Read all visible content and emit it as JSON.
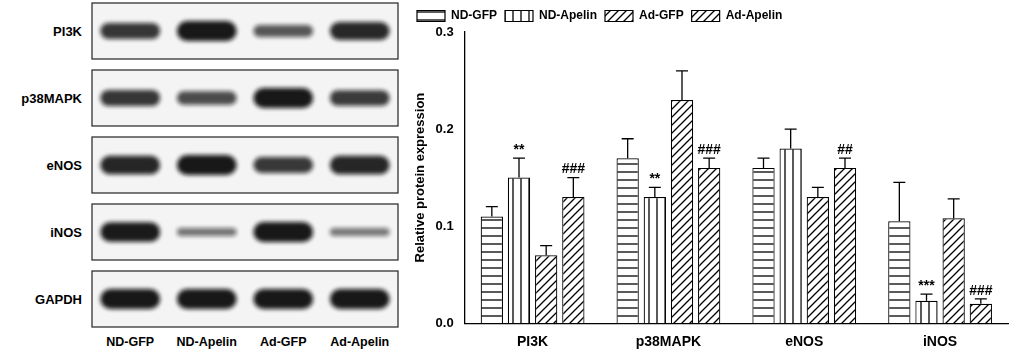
{
  "chart_data": {
    "type": "bar",
    "categories": [
      "PI3K",
      "p38MAPK",
      "eNOS",
      "iNOS"
    ],
    "series": [
      {
        "name": "ND-GFP",
        "color": "#000000",
        "values": [
          0.11,
          0.17,
          0.16,
          0.105
        ],
        "errors": [
          0.01,
          0.02,
          0.01,
          0.04
        ],
        "annotations": [
          null,
          null,
          null,
          null
        ]
      },
      {
        "name": "ND-Apelin",
        "color": "#000000",
        "values": [
          0.15,
          0.13,
          0.18,
          0.023
        ],
        "errors": [
          0.02,
          0.01,
          0.02,
          0.007
        ],
        "annotations": [
          "**",
          "**",
          null,
          "***"
        ]
      },
      {
        "name": "Ad-GFP",
        "color": "#000000",
        "values": [
          0.07,
          0.23,
          0.13,
          0.108
        ],
        "errors": [
          0.01,
          0.03,
          0.01,
          0.02
        ],
        "annotations": [
          null,
          null,
          null,
          null
        ]
      },
      {
        "name": "Ad-Apelin",
        "color": "#000000",
        "values": [
          0.13,
          0.16,
          0.16,
          0.02
        ],
        "errors": [
          0.02,
          0.01,
          0.01,
          0.005
        ],
        "annotations": [
          "###",
          "###",
          "##",
          "###"
        ]
      }
    ],
    "y_label": "Relative protein expression",
    "ylim": [
      0,
      0.3
    ],
    "yticks": [
      {
        "value": 0,
        "label": "0.0"
      },
      {
        "value": 0.1,
        "label": "0.1"
      },
      {
        "value": 0.2,
        "label": "0.2"
      },
      {
        "value": 0.3,
        "label": "0.3"
      }
    ],
    "grid": false,
    "legend": "top-left"
  },
  "blot": {
    "rows": [
      "PI3K",
      "p38MAPK",
      "eNOS",
      "iNOS",
      "GAPDH"
    ],
    "lanes": [
      "ND-GFP",
      "ND-Apelin",
      "Ad-GFP",
      "Ad-Apelin"
    ]
  }
}
